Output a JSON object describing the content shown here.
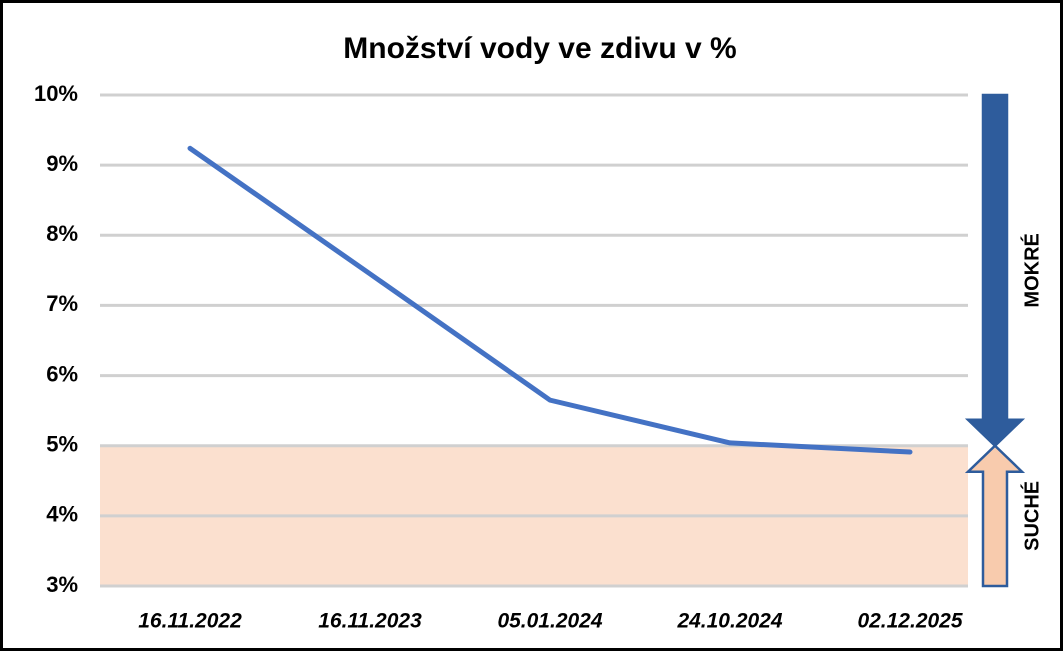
{
  "chart_data": {
    "type": "line",
    "title": "Množství vody ve zdivu v %",
    "categories": [
      "16.11.2022",
      "16.11.2023",
      "05.01.2024",
      "24.10.2024",
      "02.12.2025"
    ],
    "values": [
      9.24,
      7.45,
      5.65,
      5.04,
      4.91
    ],
    "color": "#4472c4",
    "ylim": [
      3,
      10
    ],
    "yticks": [
      {
        "value": 3,
        "label": "3%"
      },
      {
        "value": 4,
        "label": "4%"
      },
      {
        "value": 5,
        "label": "5%"
      },
      {
        "value": 6,
        "label": "6%"
      },
      {
        "value": 7,
        "label": "7%"
      },
      {
        "value": 8,
        "label": "8%"
      },
      {
        "value": 9,
        "label": "9%"
      },
      {
        "value": 10,
        "label": "10%"
      }
    ],
    "grid": true,
    "shaded_band": {
      "range": [
        3,
        5
      ],
      "color": "#fbe0cf"
    },
    "annotations": [
      {
        "text": "MOKRÉ",
        "range": [
          10,
          5
        ],
        "color": "#2e5c9c"
      },
      {
        "text": "SUCHÉ",
        "range": [
          3,
          5
        ],
        "color": "#f8cbad"
      }
    ]
  }
}
